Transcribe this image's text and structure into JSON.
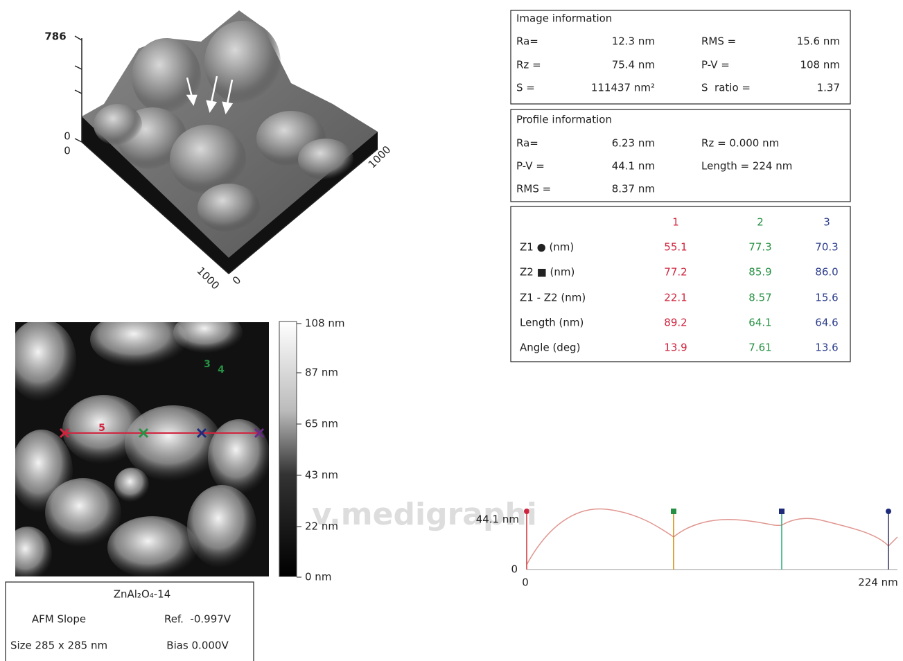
{
  "surface_3d": {
    "z_max": "786",
    "z_min": "0",
    "origin": "0",
    "x_max": "1000",
    "y_max": "1000",
    "y_min": "0"
  },
  "image_information": {
    "title": "Image information",
    "rows": [
      [
        "Ra=",
        "12.3 nm",
        "RMS =",
        "15.6 nm"
      ],
      [
        "Rz =",
        "75.4 nm",
        "P-V =",
        "108 nm"
      ],
      [
        "S =",
        "111437 nm²",
        "S  ratio =",
        "1.37"
      ]
    ]
  },
  "profile_information": {
    "title": "Profile information",
    "rows": [
      [
        "Ra=",
        "6.23 nm",
        "Rz = 0.000 nm"
      ],
      [
        "P-V =",
        "44.1 nm",
        "Length = 224 nm"
      ],
      [
        "RMS =",
        "8.37 nm"
      ]
    ]
  },
  "measurements": {
    "columns": [
      "1",
      "2",
      "3"
    ],
    "rows": [
      {
        "label": "Z1 ● (nm)",
        "values": [
          "55.1",
          "77.3",
          "70.3"
        ]
      },
      {
        "label": "Z2 ■ (nm)",
        "values": [
          "77.2",
          "85.9",
          "86.0"
        ]
      },
      {
        "label": "Z1 - Z2 (nm)",
        "values": [
          "22.1",
          "8.57",
          "15.6"
        ]
      },
      {
        "label": "Length (nm)",
        "values": [
          "89.2",
          "64.1",
          "64.6"
        ]
      },
      {
        "label": "Angle (deg)",
        "values": [
          "13.9",
          "7.61",
          "13.6"
        ]
      }
    ]
  },
  "height_image": {
    "markers": [
      "3",
      "4",
      "5"
    ],
    "colorbar_labels": [
      "108 nm",
      "87 nm",
      "65 nm",
      "43 nm",
      "22 nm",
      "0 nm"
    ]
  },
  "image_caption": {
    "title": "ZnAl₂O₄-14",
    "rows": [
      [
        "AFM Slope",
        "Ref.  -0.997V"
      ],
      [
        "Size 285 x 285 nm",
        "Bias 0.000V"
      ]
    ]
  },
  "profile_plot": {
    "y_labels": [
      "44.1 nm",
      "0"
    ],
    "x_labels": [
      "0",
      "224 nm"
    ]
  },
  "watermark": "v.medigraphi"
}
